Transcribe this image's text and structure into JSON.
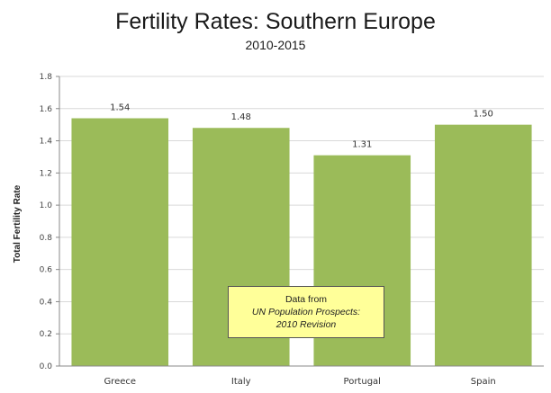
{
  "chart_data": {
    "type": "bar",
    "title": "Fertility Rates: Southern Europe",
    "subtitle": "2010-2015",
    "xlabel": "",
    "ylabel": "Total Fertility Rate",
    "categories": [
      "Greece",
      "Italy",
      "Portugal",
      "Spain"
    ],
    "values": [
      1.54,
      1.48,
      1.31,
      1.5
    ],
    "value_labels": [
      "1.54",
      "1.48",
      "1.31",
      "1.50"
    ],
    "ylim": [
      0,
      1.8
    ],
    "yticks": [
      0,
      0.2,
      0.4,
      0.6,
      0.8,
      1.0,
      1.2,
      1.4,
      1.6,
      1.8
    ],
    "ytick_labels": [
      "0.0",
      "0.2",
      "0.4",
      "0.6",
      "0.8",
      "1.0",
      "1.2",
      "1.4",
      "1.6",
      "1.8"
    ],
    "grid": "horizontal",
    "bar_color": "#9bbb59",
    "grid_color": "#d9d9d9"
  },
  "annotation": {
    "line1": "Data from",
    "line2": "UN Population Prospects:",
    "line3": "2010 Revision",
    "background": "#ffff99"
  }
}
